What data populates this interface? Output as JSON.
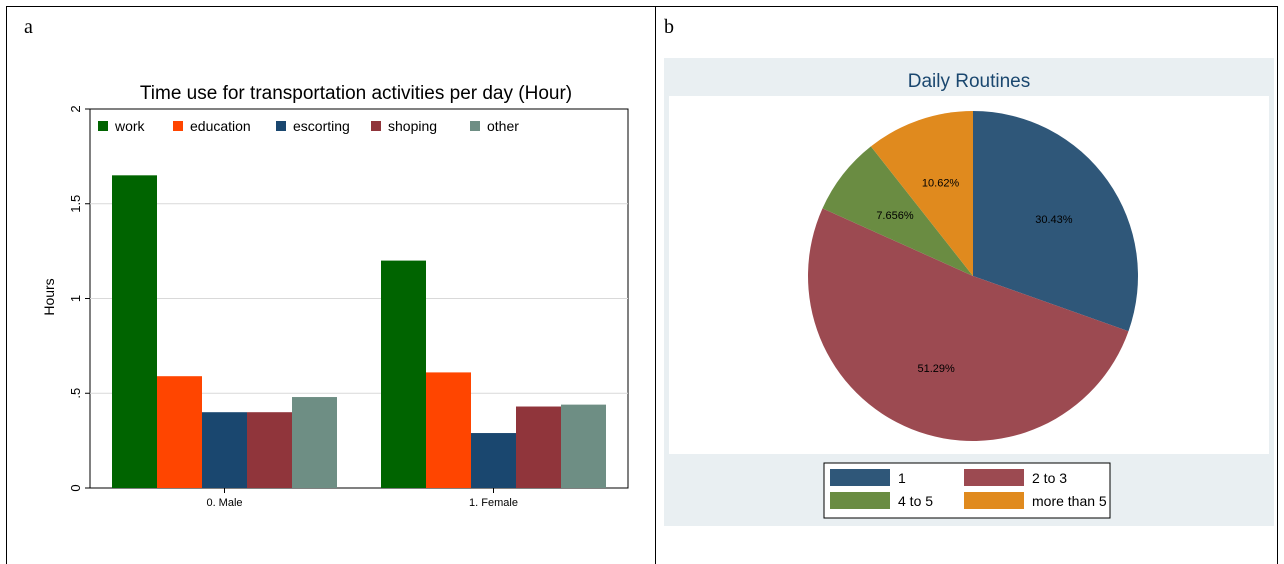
{
  "panels": {
    "a_label": "a",
    "b_label": "b"
  },
  "chart_data": [
    {
      "type": "bar",
      "title": "Time use for transportation activities per day (Hour)",
      "ylabel": "Hours",
      "xlabel": "",
      "ylim": [
        0,
        2
      ],
      "yticks": [
        "0",
        ".5",
        "1",
        "1.5",
        "2"
      ],
      "yticks_values": [
        0,
        0.5,
        1,
        1.5,
        2
      ],
      "categories": [
        "0. Male",
        "1. Female"
      ],
      "grid": true,
      "legend_position": "top",
      "series": [
        {
          "name": "work",
          "color": "#006400",
          "values": [
            1.65,
            1.2
          ]
        },
        {
          "name": "education",
          "color": "#ff4500",
          "values": [
            0.59,
            0.61
          ]
        },
        {
          "name": "escorting",
          "color": "#1a476f",
          "values": [
            0.4,
            0.29
          ]
        },
        {
          "name": "shoping",
          "color": "#90353b",
          "values": [
            0.4,
            0.43
          ]
        },
        {
          "name": "other",
          "color": "#6e8e84",
          "values": [
            0.48,
            0.44
          ]
        }
      ]
    },
    {
      "type": "pie",
      "title": "Daily Routines",
      "legend_position": "bottom",
      "slices": [
        {
          "name": "1",
          "value": 30.43,
          "label": "30.43%",
          "color": "#2f5779"
        },
        {
          "name": "2 to 3",
          "value": 51.29,
          "label": "51.29%",
          "color": "#9c4a51"
        },
        {
          "name": "4 to 5",
          "value": 7.656,
          "label": "7.656%",
          "color": "#6a8c42"
        },
        {
          "name": "more than 5",
          "value": 10.62,
          "label": "10.62%",
          "color": "#e08a1e"
        }
      ]
    }
  ]
}
